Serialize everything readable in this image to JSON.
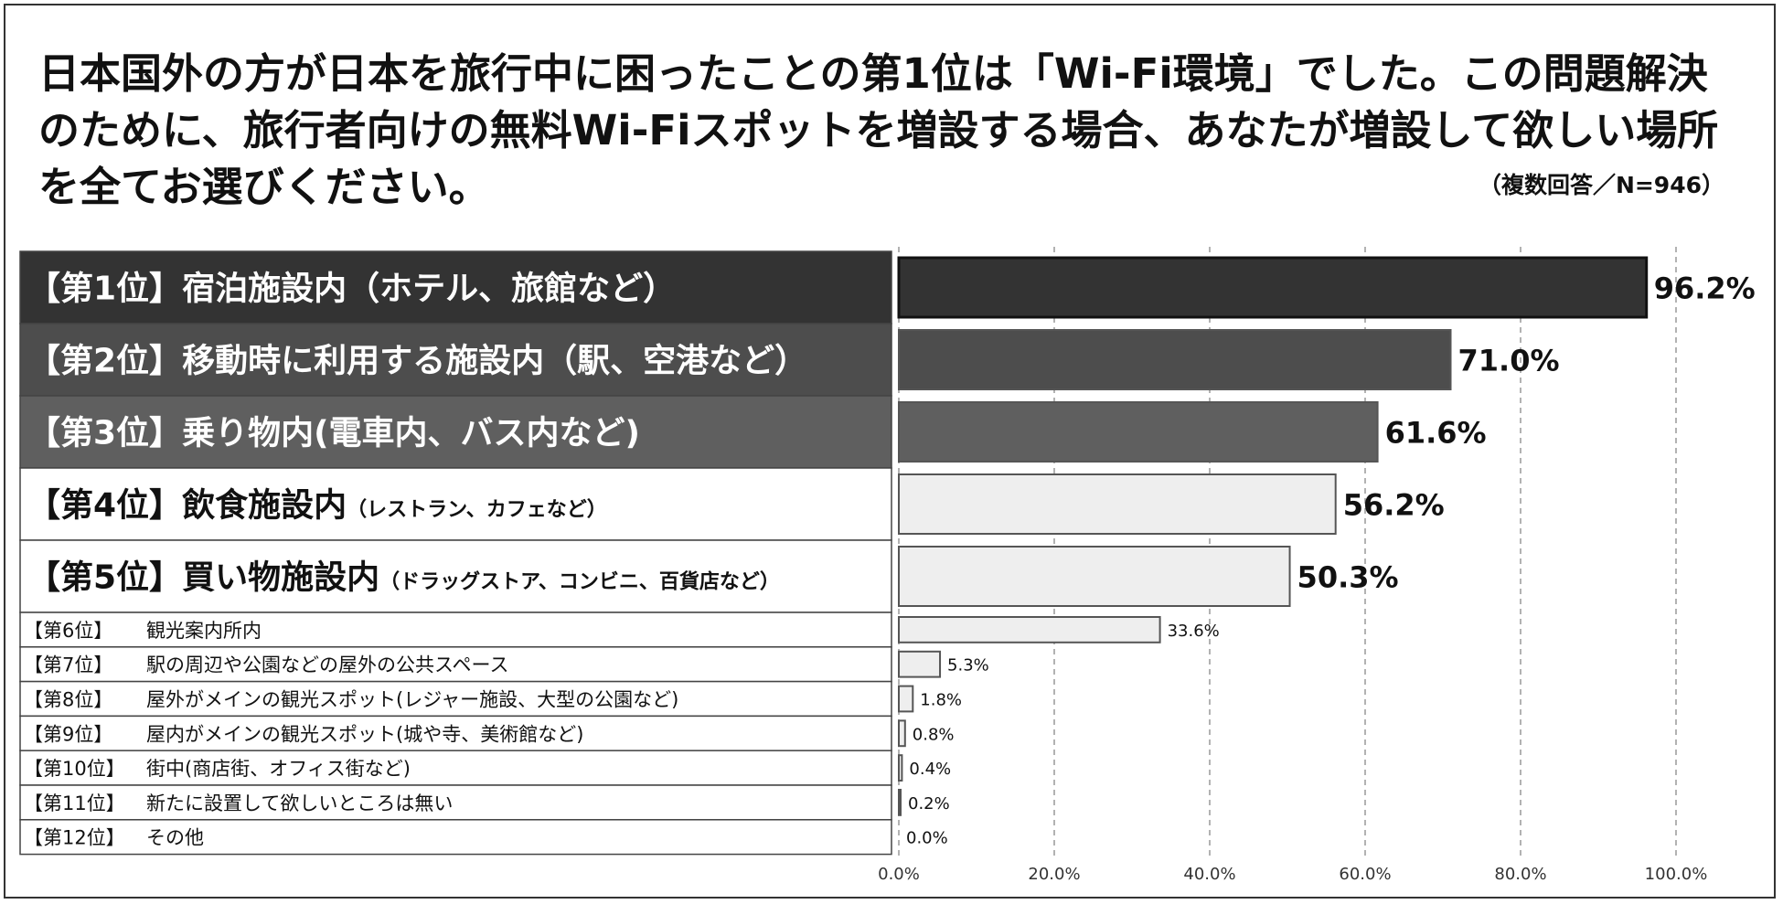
{
  "title": "日本国外の方が日本を旅行中に困ったことの第1位は「Wi-Fi環境」でした。この問題解決のために、旅行者向けの無料Wi-Fiスポットを増設する場合、あなたが増設して欲しい場所を全てお選びください。",
  "note": "（複数回答／N=946）",
  "chart_data": {
    "type": "bar",
    "orientation": "horizontal",
    "title": "日本国外の方が日本を旅行中に困ったことの第1位は「Wi-Fi環境」でした。この問題解決のために、旅行者向けの無料Wi-Fiスポットを増設する場合、あなたが増設して欲しい場所を全てお選びください。",
    "xlim": [
      0,
      100
    ],
    "x_ticks": [
      "0.0%",
      "20.0%",
      "40.0%",
      "60.0%",
      "80.0%",
      "100.0%"
    ],
    "grid": true,
    "categories": [
      {
        "rank": "【第1位】",
        "main": "宿泊施設内（ホテル、旅館など）",
        "sub": ""
      },
      {
        "rank": "【第2位】",
        "main": "移動時に利用する施設内（駅、空港など）",
        "sub": ""
      },
      {
        "rank": "【第3位】",
        "main": "乗り物内(電車内、バス内など)",
        "sub": ""
      },
      {
        "rank": "【第4位】",
        "main": "飲食施設内",
        "sub": "（レストラン、カフェなど）"
      },
      {
        "rank": "【第5位】",
        "main": "買い物施設内",
        "sub": "（ドラッグストア、コンビニ、百貨店など）"
      },
      {
        "rank": "【第6位】",
        "main": "観光案内所内",
        "sub": ""
      },
      {
        "rank": "【第7位】",
        "main": "駅の周辺や公園などの屋外の公共スペース",
        "sub": ""
      },
      {
        "rank": "【第8位】",
        "main": "屋外がメインの観光スポット(レジャー施設、大型の公園など)",
        "sub": ""
      },
      {
        "rank": "【第9位】",
        "main": "屋内がメインの観光スポット(城や寺、美術館など)",
        "sub": ""
      },
      {
        "rank": "【第10位】",
        "main": "街中(商店街、オフィス街など)",
        "sub": ""
      },
      {
        "rank": "【第11位】",
        "main": "新たに設置して欲しいところは無い",
        "sub": ""
      },
      {
        "rank": "【第12位】",
        "main": "その他",
        "sub": ""
      }
    ],
    "values": [
      96.2,
      71.0,
      61.6,
      56.2,
      50.3,
      33.6,
      5.3,
      1.8,
      0.8,
      0.4,
      0.2,
      0.0
    ],
    "value_labels": [
      "96.2%",
      "71.0%",
      "61.6%",
      "56.2%",
      "50.3%",
      "33.6%",
      "5.3%",
      "1.8%",
      "0.8%",
      "0.4%",
      "0.2%",
      "0.0%"
    ],
    "colors": {
      "rank1": "#333333",
      "rank2": "#4d4d4d",
      "rank3": "#5f5f5f",
      "light": "#eeeeee",
      "border": "#444444",
      "grid": "#999999",
      "label_dark_text": "#ffffff",
      "label_light_text": "#111111"
    }
  }
}
